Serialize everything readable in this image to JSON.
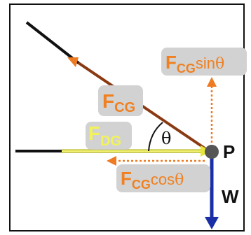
{
  "diagram": {
    "labels": {
      "fcg": {
        "main": "F",
        "sub": "CG"
      },
      "fdg": {
        "main": "F",
        "sub": "DG"
      },
      "fcg_sin": {
        "main": "F",
        "sub": "CG",
        "func": "sin",
        "angle": "θ"
      },
      "fcg_cos": {
        "main": "F",
        "sub": "CG",
        "func": "cos",
        "angle": "θ"
      },
      "theta": "θ",
      "point": "P",
      "weight": "W"
    },
    "colors": {
      "frame": "#111111",
      "rope": "#111111",
      "fcg_arrow": "#8a3a12",
      "component_arrows": "#ee7a22",
      "fcg_text": "#f08020",
      "fdg_arrow": "#b8b820",
      "fdg_text": "#f2f25a",
      "label_box": "#d2d2d2",
      "weight_arrow": "#1a2fa6",
      "point": "#555555"
    }
  }
}
